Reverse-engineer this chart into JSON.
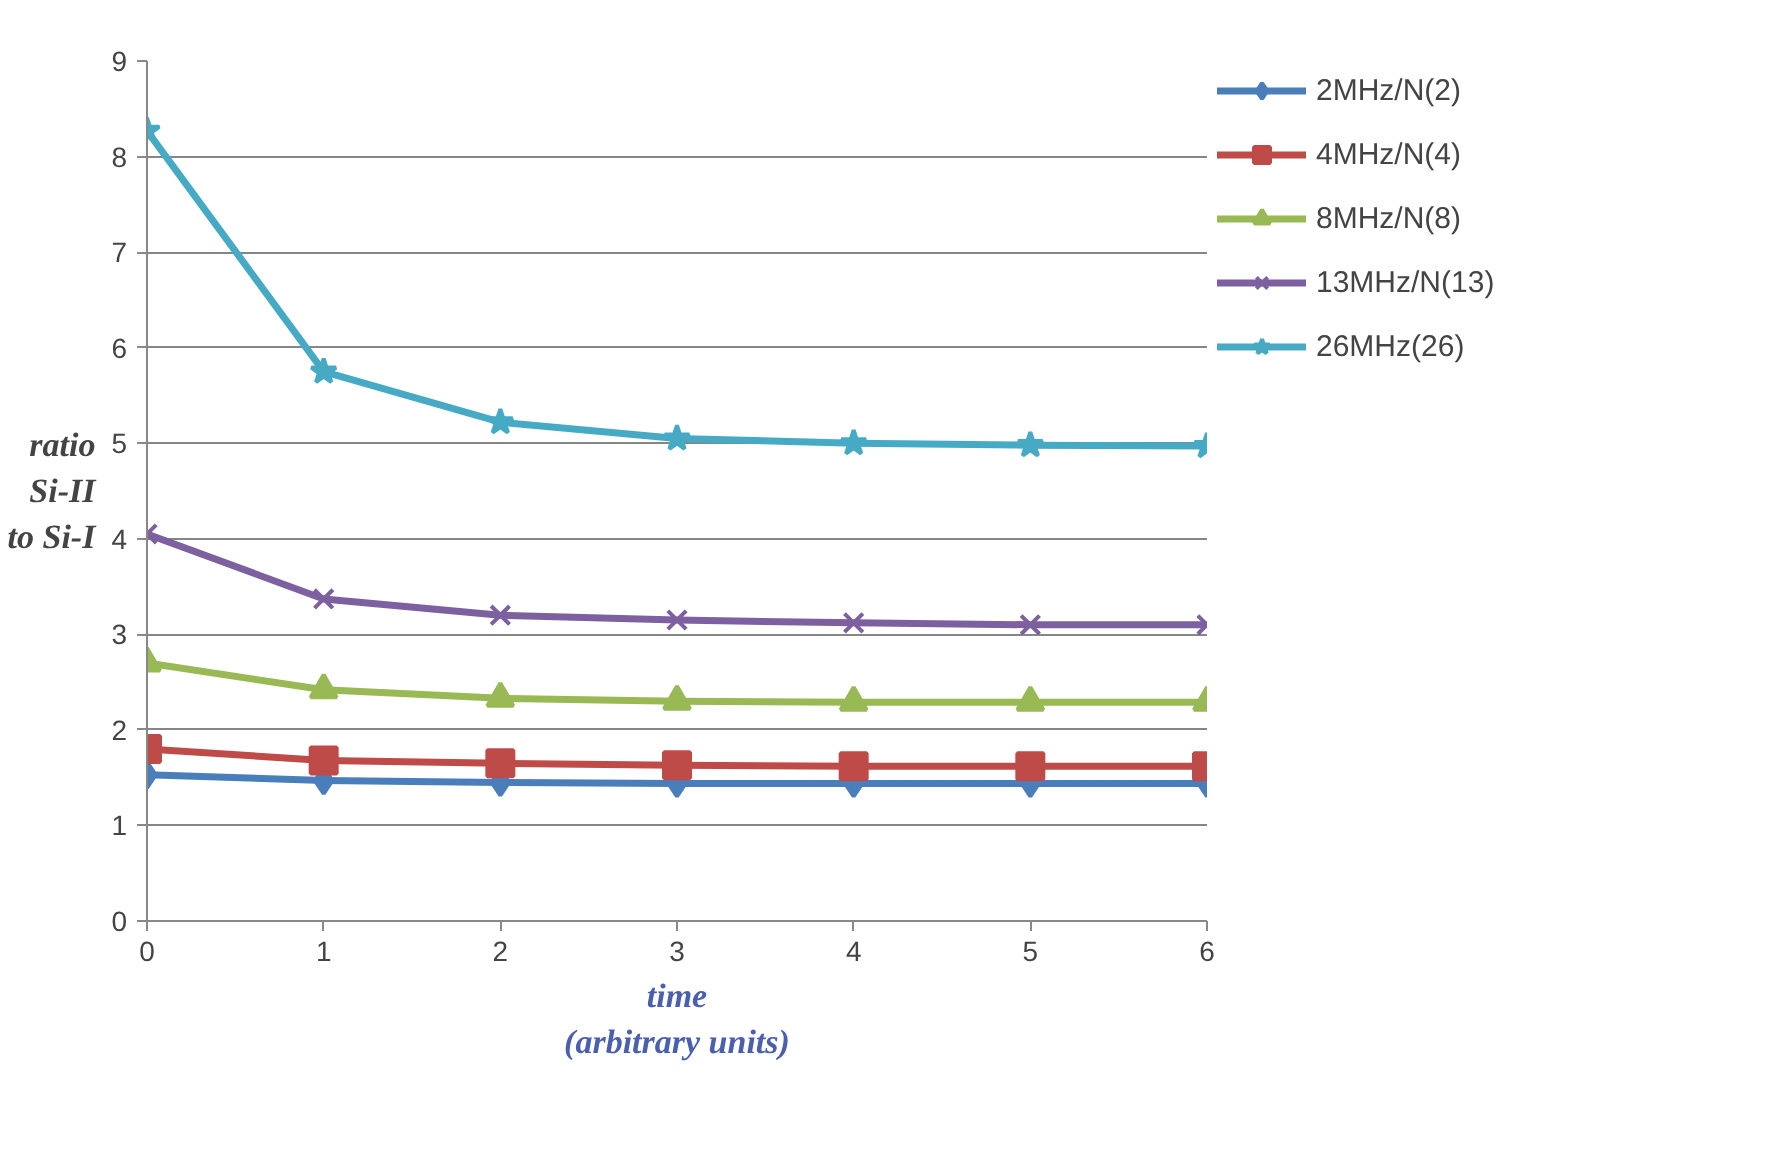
{
  "chart_data": {
    "type": "line",
    "xlabel": "time\n(arbitrary units)",
    "ylabel": "ratio\nSi-II\nto Si-I",
    "x": [
      0,
      1,
      2,
      3,
      4,
      5,
      6
    ],
    "xlim": [
      0,
      6
    ],
    "xticks": [
      0,
      1,
      2,
      3,
      4,
      5,
      6
    ],
    "ylim": [
      0,
      9
    ],
    "yticks": [
      0,
      1,
      2,
      3,
      4,
      5,
      6,
      7,
      8,
      9
    ],
    "grid": "y",
    "legend": "right",
    "series": [
      {
        "name": "2MHz/N(2)",
        "color": "#4a7ebb",
        "marker": "diamond",
        "values": [
          1.53,
          1.47,
          1.45,
          1.44,
          1.44,
          1.44,
          1.44
        ]
      },
      {
        "name": "4MHz/N(4)",
        "color": "#be4b48",
        "marker": "square",
        "values": [
          1.8,
          1.68,
          1.65,
          1.63,
          1.62,
          1.62,
          1.62
        ]
      },
      {
        "name": "8MHz/N(8)",
        "color": "#98b954",
        "marker": "triangle",
        "values": [
          2.7,
          2.42,
          2.33,
          2.3,
          2.29,
          2.29,
          2.29
        ]
      },
      {
        "name": "13MHz/N(13)",
        "color": "#7d60a0",
        "marker": "cross",
        "values": [
          4.05,
          3.37,
          3.2,
          3.15,
          3.12,
          3.1,
          3.1
        ]
      },
      {
        "name": "26MHz(26)",
        "color": "#46aac5",
        "marker": "star",
        "values": [
          8.27,
          5.75,
          5.22,
          5.05,
          5.0,
          4.98,
          4.97
        ]
      }
    ]
  }
}
